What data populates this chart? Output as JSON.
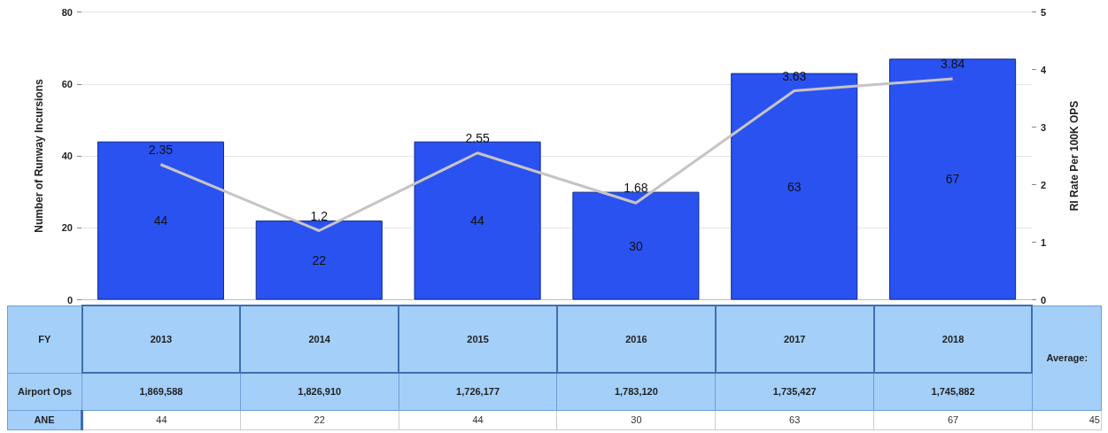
{
  "chart_data": {
    "type": "bar",
    "xlabel": "FY",
    "ylabel": "Number of Runway Incursions",
    "y2label": "RI Rate Per 100K OPS",
    "categories": [
      "2013",
      "2014",
      "2015",
      "2016",
      "2017",
      "2018"
    ],
    "series": [
      {
        "name": "ANE",
        "color": "#2a52f0",
        "values": [
          44,
          22,
          44,
          30,
          63,
          67
        ],
        "value_labels": [
          "44",
          "22",
          "44",
          "30",
          "63",
          "67"
        ]
      },
      {
        "type": "line",
        "axis": "y2",
        "color": "#c8c4c4",
        "values": [
          2.35,
          1.2,
          2.55,
          1.68,
          3.63,
          3.84
        ],
        "value_labels": [
          "2.35",
          "1.2",
          "2.55",
          "1.68",
          "3.63",
          "3.84"
        ]
      }
    ],
    "ylim": [
      0,
      80
    ],
    "yticks": [
      0,
      20,
      40,
      60,
      80
    ],
    "y2lim": [
      0,
      5
    ],
    "y2ticks": [
      0,
      1,
      2,
      3,
      4,
      5
    ],
    "grid": "y",
    "marker": "none",
    "annotations": [
      "Airport Ops",
      "1,869,588",
      "1,826,910",
      "1,726,177",
      "1,783,120",
      "1,735,427",
      "1,745,882",
      "Average:",
      "45",
      "44",
      "22",
      "44",
      "30",
      "63",
      "67"
    ]
  }
}
